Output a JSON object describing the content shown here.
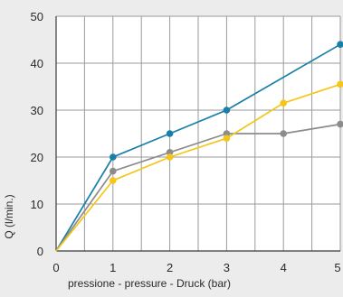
{
  "chart_data": {
    "type": "line",
    "title": "",
    "xlabel": "pressione - pressure - Druck (bar)",
    "ylabel": "Q (l/min.)",
    "x": [
      0,
      1,
      2,
      3,
      4,
      5
    ],
    "xlim": [
      0,
      5
    ],
    "ylim": [
      0,
      50
    ],
    "x_ticks": [
      "0",
      "1",
      "2",
      "3",
      "4",
      "5"
    ],
    "y_ticks": [
      "0",
      "10",
      "20",
      "30",
      "40",
      "50"
    ],
    "grid": true,
    "legend": "none",
    "series": [
      {
        "color": "#1a7fa8",
        "points": [
          [
            0,
            0
          ],
          [
            1,
            20
          ],
          [
            2,
            25
          ],
          [
            3,
            30
          ],
          [
            5,
            44
          ]
        ]
      },
      {
        "color": "#8c8c8c",
        "points": [
          [
            0,
            0
          ],
          [
            1,
            17
          ],
          [
            2,
            21
          ],
          [
            3,
            25
          ],
          [
            4,
            25
          ],
          [
            5,
            27
          ]
        ]
      },
      {
        "color": "#f5c518",
        "points": [
          [
            0,
            0
          ],
          [
            1,
            15
          ],
          [
            2,
            20
          ],
          [
            3,
            24
          ],
          [
            4,
            31.5
          ],
          [
            5,
            35.5
          ]
        ]
      }
    ]
  }
}
